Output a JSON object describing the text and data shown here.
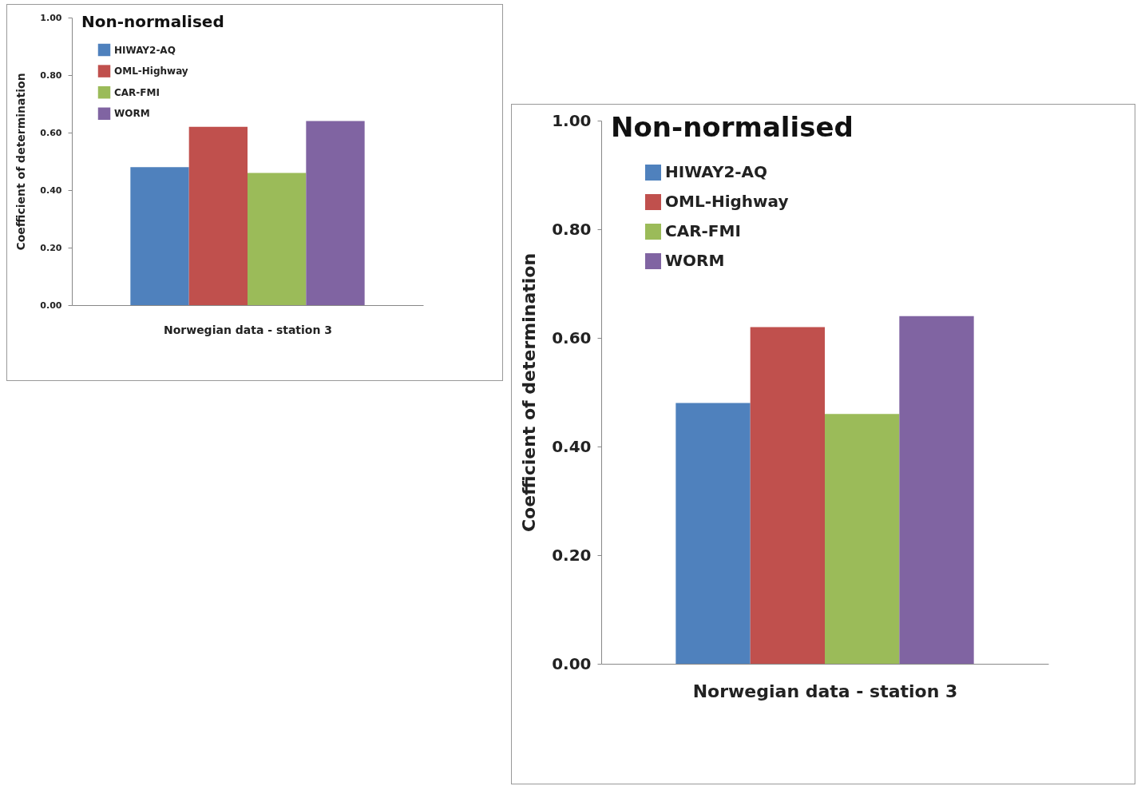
{
  "chart_data": [
    {
      "type": "bar",
      "title": "Non-normalised",
      "xlabel": "Norwegian data - station 3",
      "ylabel": "Coefficient of determination",
      "categories": [
        null
      ],
      "series": [
        {
          "name": "HIWAY2-AQ",
          "color": "#4f81bd",
          "values": [
            0.48
          ]
        },
        {
          "name": "OML-Highway",
          "color": "#c0504d",
          "values": [
            0.62
          ]
        },
        {
          "name": "CAR-FMI",
          "color": "#9bbb59",
          "values": [
            0.46
          ]
        },
        {
          "name": "WORM",
          "color": "#8064a2",
          "values": [
            0.64
          ]
        }
      ],
      "ylim": [
        0,
        1
      ],
      "yticks": [
        {
          "value": 0,
          "label": "0.00"
        },
        {
          "value": 0.2,
          "label": "0.20"
        },
        {
          "value": 0.4,
          "label": "0.40"
        },
        {
          "value": 0.6,
          "label": "0.60"
        },
        {
          "value": 0.8,
          "label": "0.80"
        },
        {
          "value": 1,
          "label": "1.00"
        }
      ],
      "grid": false,
      "legend": "top left"
    },
    {
      "type": "bar",
      "title": "Non-normalised",
      "xlabel": "Norwegian data - station 3",
      "ylabel": "Coefficient of determination",
      "categories": [
        null
      ],
      "series": [
        {
          "name": "HIWAY2-AQ",
          "color": "#4f81bd",
          "values": [
            0.48
          ]
        },
        {
          "name": "OML-Highway",
          "color": "#c0504d",
          "values": [
            0.62
          ]
        },
        {
          "name": "CAR-FMI",
          "color": "#9bbb59",
          "values": [
            0.46
          ]
        },
        {
          "name": "WORM",
          "color": "#8064a2",
          "values": [
            0.64
          ]
        }
      ],
      "ylim": [
        0,
        1
      ],
      "yticks": [
        {
          "value": 0,
          "label": "0.00"
        },
        {
          "value": 0.2,
          "label": "0.20"
        },
        {
          "value": 0.4,
          "label": "0.40"
        },
        {
          "value": 0.6,
          "label": "0.60"
        },
        {
          "value": 0.8,
          "label": "0.80"
        },
        {
          "value": 1,
          "label": "1.00"
        }
      ],
      "grid": false,
      "legend": "top left"
    }
  ]
}
